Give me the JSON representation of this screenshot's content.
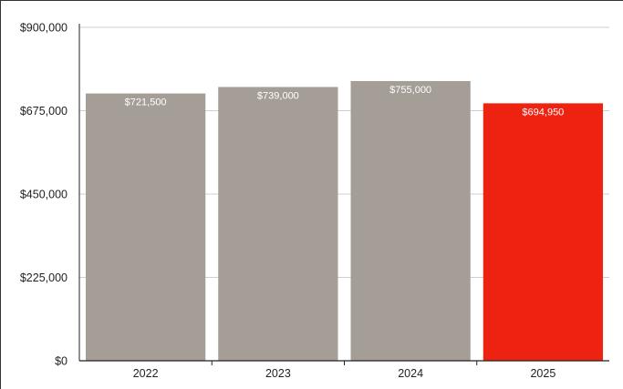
{
  "chart_data": {
    "type": "bar",
    "title": "",
    "xlabel": "",
    "ylabel": "",
    "categories": [
      "2022",
      "2023",
      "2024",
      "2025"
    ],
    "values": [
      721500,
      739000,
      755000,
      694950
    ],
    "value_labels": [
      "$721,500",
      "$739,000",
      "$755,000",
      "$694,950"
    ],
    "ylim": [
      0,
      900000
    ],
    "y_ticks": [
      0,
      225000,
      450000,
      675000,
      900000
    ],
    "y_tick_labels": [
      "$0",
      "$225,000",
      "$450,000",
      "$675,000",
      "$900,000"
    ],
    "grid": true,
    "colors": [
      "#a59e97",
      "#a59e97",
      "#a59e97",
      "#ee2211"
    ],
    "value_label_color": "#ffffff",
    "axis_color": "#222222",
    "grid_color": "#cfcfcf"
  }
}
